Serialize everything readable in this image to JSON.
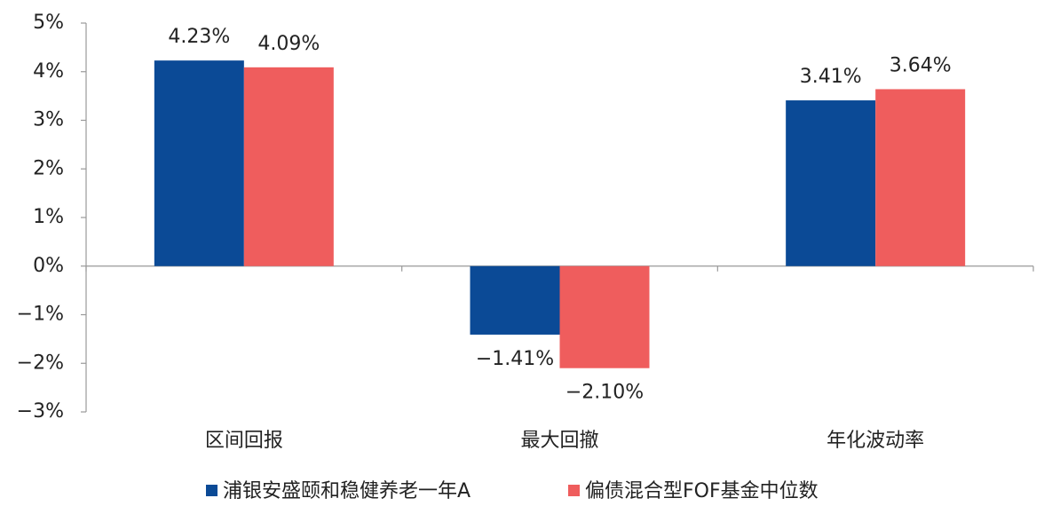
{
  "chart_data": {
    "type": "bar",
    "categories": [
      "区间回报",
      "最大回撤",
      "年化波动率"
    ],
    "series": [
      {
        "name": "浦银安盛颐和稳健养老一年A",
        "color": "#0b4a96",
        "values": [
          4.23,
          -1.41,
          3.41
        ],
        "value_labels": [
          "4.23%",
          "−1.41%",
          "3.41%"
        ]
      },
      {
        "name": "偏债混合型FOF基金中位数",
        "color": "#ef5d5d",
        "values": [
          4.09,
          -2.1,
          3.64
        ],
        "value_labels": [
          "4.09%",
          "−2.10%",
          "3.64%"
        ]
      }
    ],
    "ylim": [
      -3,
      5
    ],
    "yticks": [
      {
        "value": -3,
        "label": "−3%"
      },
      {
        "value": -2,
        "label": "−2%"
      },
      {
        "value": -1,
        "label": "−1%"
      },
      {
        "value": 0,
        "label": "0%"
      },
      {
        "value": 1,
        "label": "1%"
      },
      {
        "value": 2,
        "label": "2%"
      },
      {
        "value": 3,
        "label": "3%"
      },
      {
        "value": 4,
        "label": "4%"
      },
      {
        "value": 5,
        "label": "5%"
      }
    ],
    "grid": false,
    "legend": "bottom"
  }
}
